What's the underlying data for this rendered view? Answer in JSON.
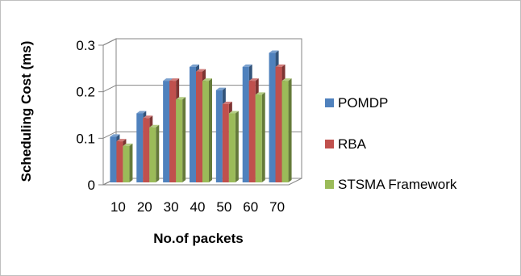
{
  "chart_data": {
    "type": "bar",
    "title": "",
    "xlabel": "No.of packets",
    "ylabel": "Scheduling Cost (ms)",
    "categories": [
      "10",
      "20",
      "30",
      "40",
      "50",
      "60",
      "70"
    ],
    "series": [
      {
        "name": "POMDP",
        "values": [
          0.1,
          0.15,
          0.22,
          0.25,
          0.2,
          0.25,
          0.28
        ],
        "color": "#4f81bd"
      },
      {
        "name": "RBA",
        "values": [
          0.09,
          0.14,
          0.22,
          0.24,
          0.17,
          0.22,
          0.25
        ],
        "color": "#c0504d"
      },
      {
        "name": "STSMA Framework",
        "values": [
          0.08,
          0.12,
          0.18,
          0.22,
          0.15,
          0.19,
          0.22
        ],
        "color": "#9bbb59"
      }
    ],
    "ylim": [
      0,
      0.3
    ],
    "yticks": [
      "0",
      "0.1",
      "0.2",
      "0.3"
    ],
    "grid": true,
    "legend_position": "right",
    "style": "3d-clustered"
  }
}
